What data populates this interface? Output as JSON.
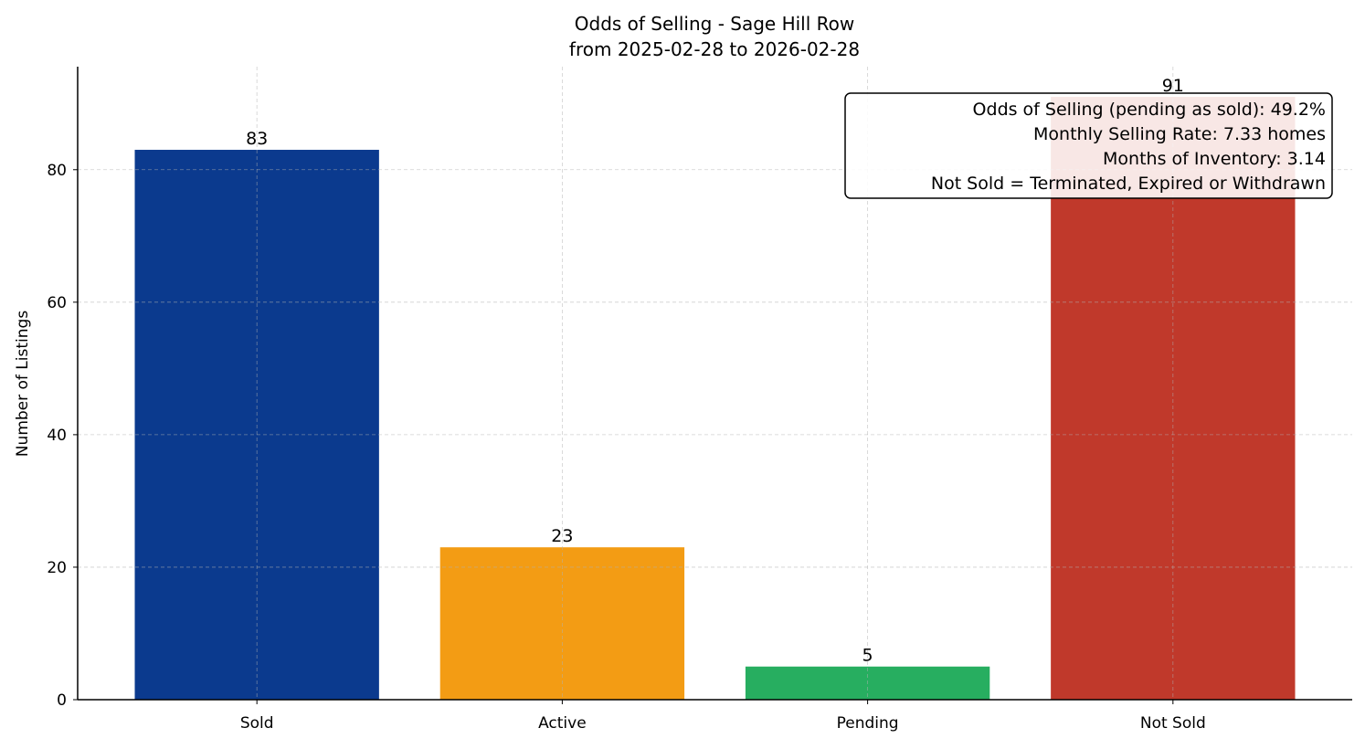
{
  "chart_data": {
    "type": "bar",
    "title": "Odds of Selling - Sage Hill Row",
    "subtitle": "from 2025-02-28 to 2026-02-28",
    "xlabel": "",
    "ylabel": "Number of Listings",
    "categories": [
      "Sold",
      "Active",
      "Pending",
      "Not Sold"
    ],
    "values": [
      83,
      23,
      5,
      91
    ],
    "colors": [
      "#0b3a8e",
      "#f39c14",
      "#27ae60",
      "#c0392b"
    ],
    "ylim": [
      0,
      95.55
    ],
    "yticks": [
      0,
      20,
      40,
      60,
      80
    ],
    "grid": true,
    "annotation": {
      "placement": "top-right",
      "lines": [
        "Odds of Selling (pending as sold): 49.2%",
        "Monthly Selling Rate: 7.33 homes",
        "Months of Inventory: 3.14",
        "Not Sold = Terminated, Expired or Withdrawn"
      ]
    }
  }
}
